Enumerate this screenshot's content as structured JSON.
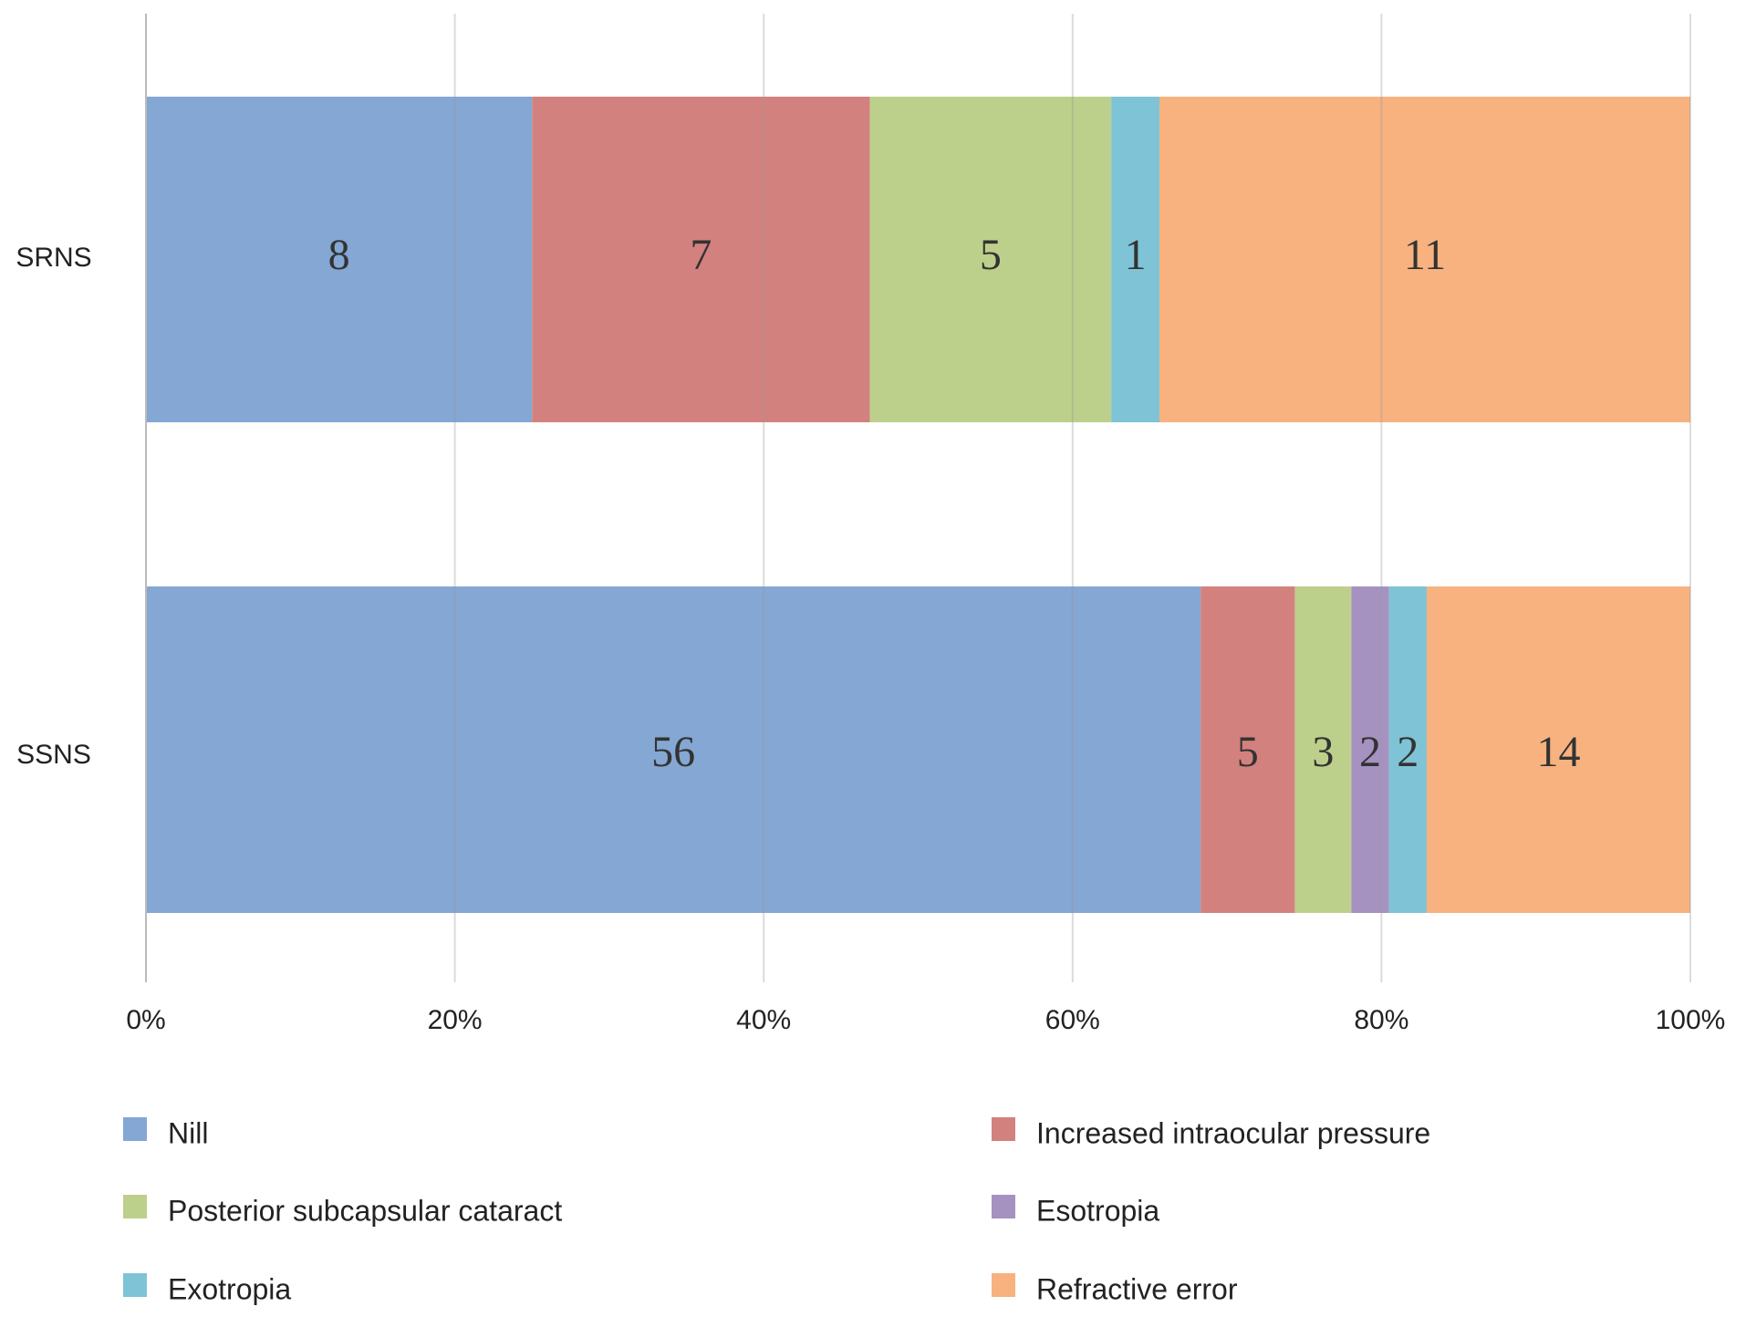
{
  "chart_data": {
    "type": "bar",
    "orientation": "horizontal",
    "stacked": "percent",
    "categories": [
      "SRNS",
      "SSNS"
    ],
    "series": [
      {
        "name": "Nill",
        "color": "#84a7d3",
        "values": [
          8,
          56
        ]
      },
      {
        "name": "Increased intraocular pressure",
        "color": "#d3817f",
        "values": [
          7,
          5
        ]
      },
      {
        "name": "Posterior subcapsular cataract",
        "color": "#bdd08b",
        "values": [
          5,
          3
        ]
      },
      {
        "name": "Esotropia",
        "color": "#a692c1",
        "values": [
          null,
          2
        ]
      },
      {
        "name": "Exotropia",
        "color": "#7fc3d6",
        "values": [
          1,
          2
        ]
      },
      {
        "name": "Refractive error",
        "color": "#f7b27f",
        "values": [
          11,
          14
        ]
      }
    ],
    "xlim": [
      0,
      100
    ],
    "xticks": [
      {
        "value": 0,
        "label": "0%"
      },
      {
        "value": 20,
        "label": "20%"
      },
      {
        "value": 40,
        "label": "40%"
      },
      {
        "value": 60,
        "label": "60%"
      },
      {
        "value": 80,
        "label": "80%"
      },
      {
        "value": 100,
        "label": "100%"
      }
    ],
    "grid": true,
    "legend": "bottom"
  }
}
